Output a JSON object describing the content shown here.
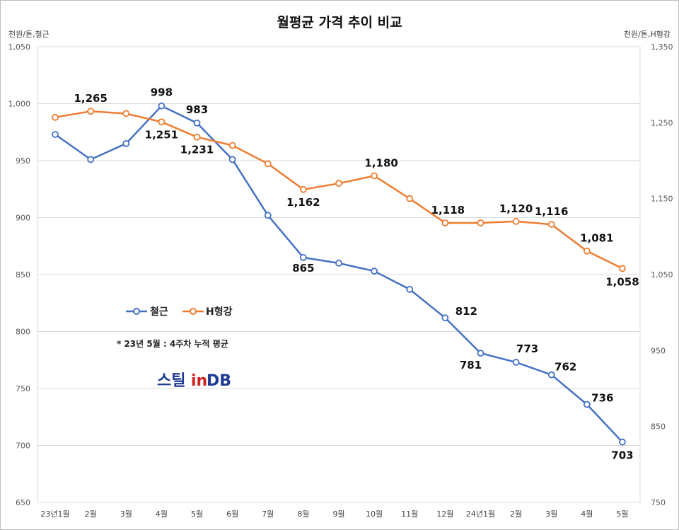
{
  "chart_data": {
    "type": "line",
    "title": "월평균 가격 추이 비교",
    "left_unit": "천원/톤,철근",
    "right_unit": "천원/톤,H형강",
    "categories": [
      "23년1월",
      "2월",
      "3월",
      "4월",
      "5월",
      "6월",
      "7월",
      "8월",
      "9월",
      "10월",
      "11월",
      "12월",
      "24년1월",
      "2월",
      "3월",
      "4월",
      "5월"
    ],
    "y_left": {
      "min": 650,
      "max": 1050,
      "ticks": [
        "1,050",
        "1,000",
        "950",
        "900",
        "850",
        "800",
        "750",
        "700",
        "650"
      ]
    },
    "y_right": {
      "min": 750,
      "max": 1350,
      "ticks": [
        "1,350",
        "1,250",
        "1,150",
        "1,050",
        "950",
        "850",
        "750"
      ]
    },
    "grid": true,
    "series": [
      {
        "name": "철근",
        "axis": "left",
        "color": "#4472C4",
        "values": [
          973,
          951,
          965,
          998,
          983,
          951,
          902,
          865,
          860,
          853,
          837,
          812,
          781,
          773,
          762,
          736,
          703
        ],
        "labels": [
          null,
          null,
          null,
          "998",
          "983",
          null,
          null,
          "865",
          null,
          null,
          null,
          "812",
          "781",
          "773",
          "762",
          "736",
          "703"
        ]
      },
      {
        "name": "H형강",
        "axis": "right",
        "color": "#ED7D31",
        "values": [
          1257,
          1265,
          1262,
          1251,
          1231,
          1220,
          1196,
          1162,
          1170,
          1180,
          1150,
          1118,
          1118,
          1120,
          1116,
          1081,
          1058
        ],
        "labels": [
          null,
          "1,265",
          null,
          "1,251",
          "1,231",
          null,
          null,
          "1,162",
          null,
          "1,180",
          null,
          "1,118",
          null,
          "1,120",
          "1,116",
          "1,081",
          "1,058"
        ]
      }
    ],
    "legend_position": "middle-left"
  },
  "note": "* 23년 5월 : 4주차 누적 평균",
  "logo": {
    "part1": "스틸",
    "part2": "in",
    "part3": "DB"
  }
}
